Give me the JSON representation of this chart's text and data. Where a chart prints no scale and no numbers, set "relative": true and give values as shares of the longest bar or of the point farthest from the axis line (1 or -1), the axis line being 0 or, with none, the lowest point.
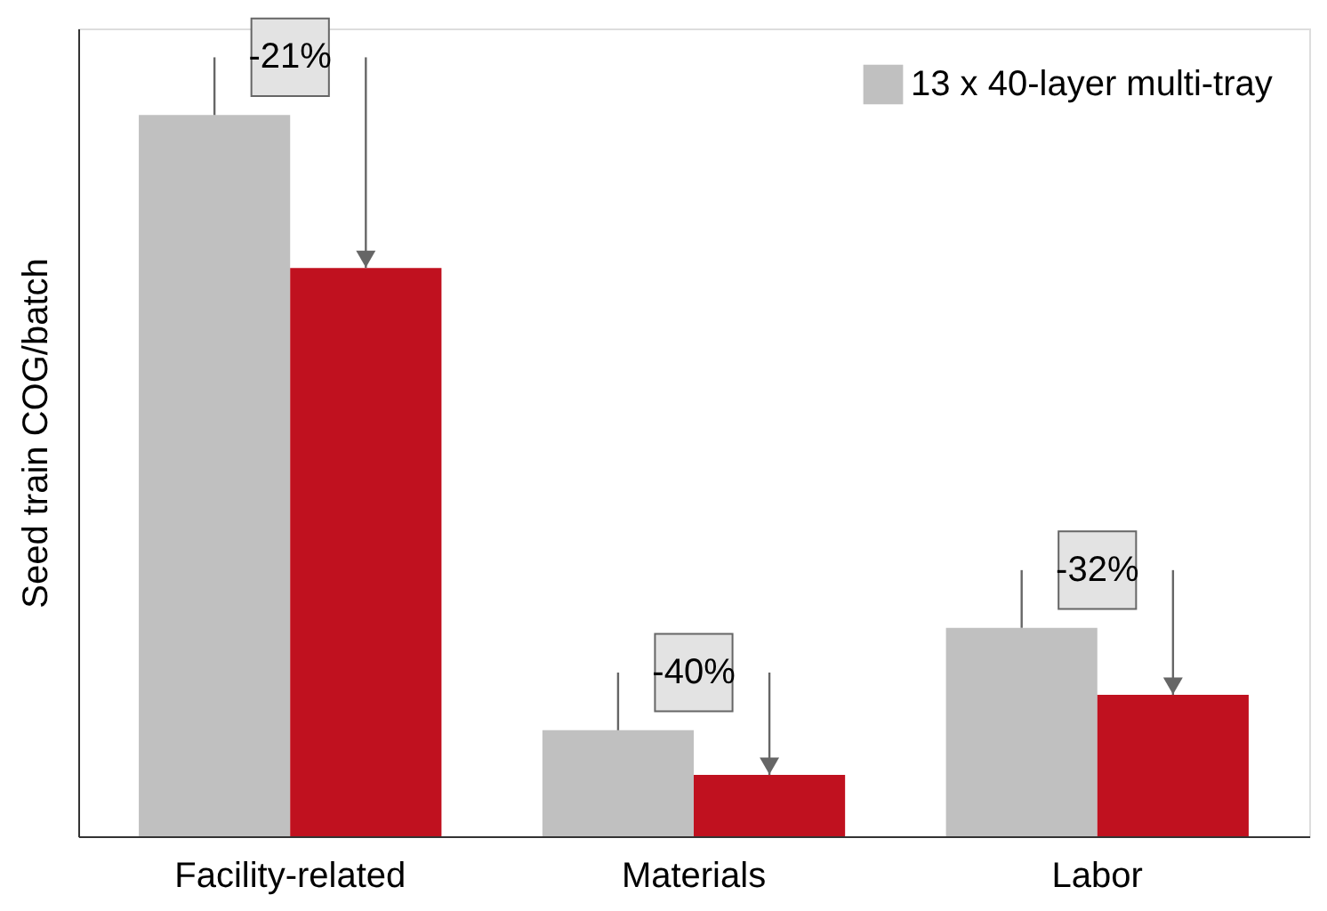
{
  "chart_data": {
    "type": "bar",
    "relative": true,
    "ylabel": "Seed train COG/batch",
    "categories": [
      "Facility-related",
      "Materials",
      "Labor"
    ],
    "series": [
      {
        "name": "13 x 40-layer multi-tray",
        "color": "#c0c0c0",
        "values": [
          1,
          0.147,
          0.289
        ]
      },
      {
        "color": "#c0111f",
        "values": [
          0.788,
          0.085,
          0.196
        ]
      }
    ],
    "annotations": [
      "-21%",
      "-40%",
      "-32%"
    ],
    "legend": "top right",
    "grid": false
  }
}
